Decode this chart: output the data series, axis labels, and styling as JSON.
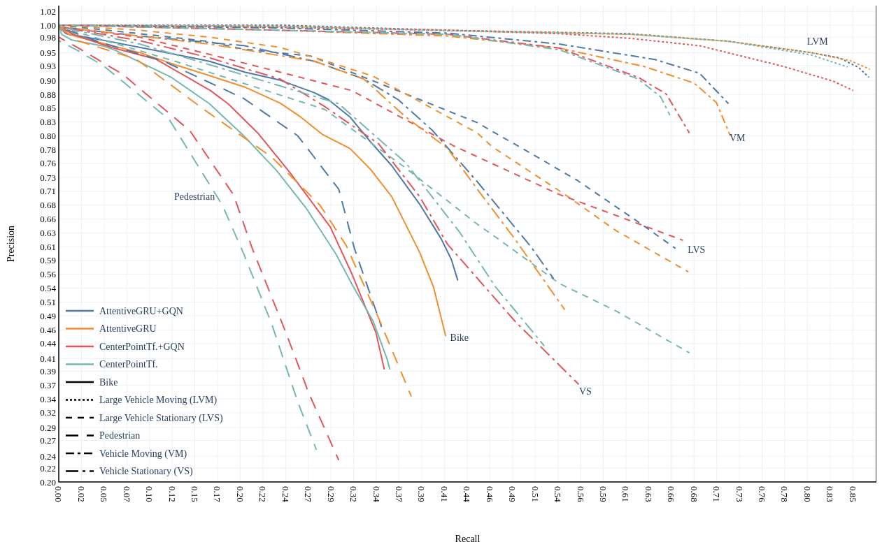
{
  "chart_data": {
    "type": "line",
    "xlabel": "Recall",
    "ylabel": "Precision",
    "xlim": [
      0,
      0.879
    ],
    "ylim": [
      0.2,
      1.03
    ],
    "xticks": [
      {
        "value": 0,
        "label": "0.00"
      },
      {
        "value": 0.0244,
        "label": "0.02"
      },
      {
        "value": 0.0488,
        "label": "0.05"
      },
      {
        "value": 0.0732,
        "label": "0.07"
      },
      {
        "value": 0.0976,
        "label": "0.10"
      },
      {
        "value": 0.122,
        "label": "0.12"
      },
      {
        "value": 0.1463,
        "label": "0.15"
      },
      {
        "value": 0.1707,
        "label": "0.17"
      },
      {
        "value": 0.1951,
        "label": "0.20"
      },
      {
        "value": 0.2195,
        "label": "0.22"
      },
      {
        "value": 0.2439,
        "label": "0.24"
      },
      {
        "value": 0.2683,
        "label": "0.27"
      },
      {
        "value": 0.2927,
        "label": "0.29"
      },
      {
        "value": 0.3171,
        "label": "0.32"
      },
      {
        "value": 0.3415,
        "label": "0.34"
      },
      {
        "value": 0.3659,
        "label": "0.37"
      },
      {
        "value": 0.3902,
        "label": "0.39"
      },
      {
        "value": 0.4146,
        "label": "0.41"
      },
      {
        "value": 0.439,
        "label": "0.44"
      },
      {
        "value": 0.4634,
        "label": "0.46"
      },
      {
        "value": 0.4878,
        "label": "0.49"
      },
      {
        "value": 0.5122,
        "label": "0.51"
      },
      {
        "value": 0.5366,
        "label": "0.54"
      },
      {
        "value": 0.561,
        "label": "0.56"
      },
      {
        "value": 0.5854,
        "label": "0.59"
      },
      {
        "value": 0.6098,
        "label": "0.61"
      },
      {
        "value": 0.6341,
        "label": "0.63"
      },
      {
        "value": 0.6585,
        "label": "0.66"
      },
      {
        "value": 0.6829,
        "label": "0.68"
      },
      {
        "value": 0.7073,
        "label": "0.71"
      },
      {
        "value": 0.7317,
        "label": "0.73"
      },
      {
        "value": 0.7561,
        "label": "0.76"
      },
      {
        "value": 0.7805,
        "label": "0.78"
      },
      {
        "value": 0.8049,
        "label": "0.80"
      },
      {
        "value": 0.8293,
        "label": "0.83"
      },
      {
        "value": 0.8537,
        "label": "0.85"
      }
    ],
    "yticks": [
      {
        "value": 0.2,
        "label": "0.20"
      },
      {
        "value": 0.2241,
        "label": "0.22"
      },
      {
        "value": 0.2449,
        "label": "0.24"
      },
      {
        "value": 0.2724,
        "label": "0.27"
      },
      {
        "value": 0.2949,
        "label": "0.29"
      },
      {
        "value": 0.3206,
        "label": "0.32"
      },
      {
        "value": 0.3447,
        "label": "0.34"
      },
      {
        "value": 0.3688,
        "label": "0.37"
      },
      {
        "value": 0.3929,
        "label": "0.39"
      },
      {
        "value": 0.4149,
        "label": "0.41"
      },
      {
        "value": 0.4412,
        "label": "0.44"
      },
      {
        "value": 0.4649,
        "label": "0.46"
      },
      {
        "value": 0.4894,
        "label": "0.49"
      },
      {
        "value": 0.5135,
        "label": "0.51"
      },
      {
        "value": 0.5376,
        "label": "0.54"
      },
      {
        "value": 0.5618,
        "label": "0.56"
      },
      {
        "value": 0.5859,
        "label": "0.59"
      },
      {
        "value": 0.61,
        "label": "0.61"
      },
      {
        "value": 0.6341,
        "label": "0.63"
      },
      {
        "value": 0.6582,
        "label": "0.66"
      },
      {
        "value": 0.6824,
        "label": "0.68"
      },
      {
        "value": 0.7065,
        "label": "0.71"
      },
      {
        "value": 0.7306,
        "label": "0.73"
      },
      {
        "value": 0.7551,
        "label": "0.76"
      },
      {
        "value": 0.7788,
        "label": "0.78"
      },
      {
        "value": 0.8029,
        "label": "0.80"
      },
      {
        "value": 0.8271,
        "label": "0.83"
      },
      {
        "value": 0.8512,
        "label": "0.85"
      },
      {
        "value": 0.8753,
        "label": "0.88"
      },
      {
        "value": 0.8994,
        "label": "0.90"
      },
      {
        "value": 0.925,
        "label": "0.93"
      },
      {
        "value": 0.9476,
        "label": "0.95"
      },
      {
        "value": 0.9751,
        "label": "0.98"
      },
      {
        "value": 0.9959,
        "label": "1.00"
      },
      {
        "value": 1.02,
        "label": "1.02"
      }
    ],
    "grid": true,
    "legend": "bottom left",
    "annotations": [
      "Bike",
      "Large Vehicle Moving (LVM)",
      "Large Vehicle Stationary (LVS)",
      "Pedestrian",
      "Vehicle Moving (VM)",
      "Vehicle Stationary (VS)",
      "LVM",
      "VM",
      "LVS",
      "Bike",
      "VS",
      "Pedestrian"
    ],
    "series": [
      {
        "name": "AttentiveGRU+GQN",
        "color": "#4e79a7",
        "line_style": "solid",
        "x": [
          0,
          0.008,
          0.05,
          0.125,
          0.162,
          0.2,
          0.238,
          0.275,
          0.29,
          0.313,
          0.335,
          0.358,
          0.388,
          0.411,
          0.422,
          0.429
        ],
        "values": [
          0.993,
          0.981,
          0.969,
          0.945,
          0.933,
          0.914,
          0.9,
          0.878,
          0.866,
          0.836,
          0.793,
          0.751,
          0.684,
          0.624,
          0.588,
          0.551
        ]
      },
      {
        "name": "AttentiveGRU",
        "color": "#f28e2b",
        "line_style": "solid",
        "x": [
          0,
          0.012,
          0.05,
          0.087,
          0.125,
          0.162,
          0.2,
          0.238,
          0.26,
          0.283,
          0.313,
          0.335,
          0.358,
          0.388,
          0.403,
          0.416
        ],
        "values": [
          0.993,
          0.979,
          0.963,
          0.948,
          0.927,
          0.908,
          0.888,
          0.86,
          0.836,
          0.806,
          0.781,
          0.745,
          0.697,
          0.6,
          0.539,
          0.454
        ]
      },
      {
        "name": "CenterPointTf.+GQN",
        "color": "#e15759",
        "line_style": "solid",
        "x": [
          0,
          0.02,
          0.057,
          0.104,
          0.163,
          0.182,
          0.214,
          0.249,
          0.292,
          0.315,
          0.341,
          0.35
        ],
        "values": [
          0.993,
          0.977,
          0.957,
          0.937,
          0.882,
          0.859,
          0.808,
          0.738,
          0.644,
          0.563,
          0.46,
          0.396
        ]
      },
      {
        "name": "CenterPointTf.",
        "color": "#76b7b2",
        "line_style": "solid",
        "x": [
          0,
          0.003,
          0.014,
          0.049,
          0.061,
          0.121,
          0.162,
          0.199,
          0.234,
          0.266,
          0.298,
          0.315,
          0.338,
          0.353,
          0.356
        ],
        "values": [
          0.999,
          0.98,
          0.97,
          0.959,
          0.952,
          0.905,
          0.859,
          0.803,
          0.743,
          0.677,
          0.597,
          0.545,
          0.48,
          0.414,
          0.396
        ]
      },
      {
        "color": "#4e79a7",
        "line_style": "dotted",
        "x": [
          0,
          0.238,
          0.418,
          0.614,
          0.719,
          0.809,
          0.839,
          0.86,
          0.871
        ],
        "values": [
          0.996,
          0.996,
          0.987,
          0.981,
          0.968,
          0.948,
          0.939,
          0.922,
          0.905
        ]
      },
      {
        "color": "#f28e2b",
        "line_style": "dotted",
        "x": [
          0,
          0.238,
          0.418,
          0.614,
          0.719,
          0.809,
          0.851,
          0.872
        ],
        "values": [
          0.996,
          0.994,
          0.987,
          0.98,
          0.968,
          0.948,
          0.934,
          0.919
        ]
      },
      {
        "color": "#e15759",
        "line_style": "dotted",
        "x": [
          0,
          0.238,
          0.418,
          0.538,
          0.614,
          0.689,
          0.779,
          0.833,
          0.854
        ],
        "values": [
          0.996,
          0.992,
          0.987,
          0.981,
          0.973,
          0.96,
          0.924,
          0.898,
          0.882
        ]
      },
      {
        "color": "#76b7b2",
        "line_style": "dotted",
        "x": [
          0,
          0.238,
          0.418,
          0.614,
          0.719,
          0.809,
          0.848
        ],
        "values": [
          0.996,
          0.994,
          0.986,
          0.98,
          0.968,
          0.944,
          0.923
        ]
      },
      {
        "color": "#4e79a7",
        "line_style": "dashed",
        "x": [
          0,
          0.087,
          0.159,
          0.199,
          0.271,
          0.364,
          0.45,
          0.508,
          0.557,
          0.623,
          0.663
        ],
        "values": [
          0.996,
          0.981,
          0.968,
          0.954,
          0.942,
          0.882,
          0.826,
          0.772,
          0.726,
          0.653,
          0.607
        ]
      },
      {
        "color": "#f28e2b",
        "line_style": "dashed",
        "x": [
          0,
          0.087,
          0.162,
          0.238,
          0.28,
          0.338,
          0.45,
          0.466,
          0.544,
          0.599,
          0.677
        ],
        "values": [
          0.996,
          0.987,
          0.975,
          0.957,
          0.937,
          0.907,
          0.808,
          0.784,
          0.701,
          0.638,
          0.566
        ]
      },
      {
        "color": "#e15759",
        "line_style": "dashed",
        "x": [
          0,
          0.087,
          0.162,
          0.243,
          0.315,
          0.424,
          0.538,
          0.623,
          0.671
        ],
        "values": [
          0.993,
          0.975,
          0.945,
          0.912,
          0.882,
          0.786,
          0.701,
          0.65,
          0.621
        ]
      },
      {
        "color": "#76b7b2",
        "line_style": "dashed",
        "x": [
          0,
          0.05,
          0.125,
          0.223,
          0.286,
          0.373,
          0.45,
          0.472,
          0.538,
          0.599,
          0.678
        ],
        "values": [
          0.993,
          0.969,
          0.933,
          0.882,
          0.849,
          0.747,
          0.649,
          0.624,
          0.546,
          0.498,
          0.425
        ]
      },
      {
        "color": "#4e79a7",
        "line_style": "longdash",
        "x": [
          0,
          0.041,
          0.113,
          0.199,
          0.257,
          0.301,
          0.318,
          0.347
        ],
        "values": [
          0.993,
          0.968,
          0.933,
          0.868,
          0.803,
          0.71,
          0.606,
          0.47
        ]
      },
      {
        "color": "#f28e2b",
        "line_style": "longdash",
        "x": [
          0,
          0.02,
          0.083,
          0.156,
          0.229,
          0.281,
          0.309,
          0.344,
          0.379
        ],
        "values": [
          0.993,
          0.969,
          0.937,
          0.849,
          0.766,
          0.682,
          0.612,
          0.485,
          0.349
        ]
      },
      {
        "color": "#e15759",
        "line_style": "longdash",
        "x": [
          0,
          0.02,
          0.069,
          0.141,
          0.188,
          0.208,
          0.243,
          0.269,
          0.301
        ],
        "values": [
          0.975,
          0.957,
          0.91,
          0.812,
          0.7,
          0.607,
          0.465,
          0.354,
          0.238
        ]
      },
      {
        "color": "#76b7b2",
        "line_style": "longdash",
        "x": [
          0,
          0.02,
          0.049,
          0.119,
          0.176,
          0.199,
          0.229,
          0.257,
          0.277
        ],
        "values": [
          0.969,
          0.952,
          0.924,
          0.831,
          0.682,
          0.597,
          0.475,
          0.339,
          0.256
        ]
      },
      {
        "color": "#4e79a7",
        "line_style": "dashdot",
        "x": [
          0,
          0.238,
          0.418,
          0.538,
          0.641,
          0.689,
          0.72
        ],
        "values": [
          0.996,
          0.991,
          0.982,
          0.963,
          0.936,
          0.912,
          0.859
        ]
      },
      {
        "color": "#f28e2b",
        "line_style": "dashdot",
        "x": [
          0,
          0.238,
          0.418,
          0.538,
          0.629,
          0.683,
          0.707,
          0.722
        ],
        "values": [
          0.996,
          0.987,
          0.977,
          0.956,
          0.924,
          0.895,
          0.861,
          0.803
        ]
      },
      {
        "color": "#e15759",
        "line_style": "dashdot",
        "x": [
          0,
          0.238,
          0.418,
          0.538,
          0.623,
          0.653,
          0.678
        ],
        "values": [
          0.996,
          0.987,
          0.98,
          0.956,
          0.905,
          0.876,
          0.808
        ]
      },
      {
        "color": "#76b7b2",
        "line_style": "dashdot",
        "x": [
          0,
          0.238,
          0.418,
          0.538,
          0.623,
          0.647,
          0.657
        ],
        "values": [
          0.996,
          0.987,
          0.98,
          0.953,
          0.902,
          0.871,
          0.839
        ]
      },
      {
        "color": "#4e79a7",
        "line_style": "longdashdot",
        "x": [
          0,
          0.087,
          0.2,
          0.275,
          0.328,
          0.365,
          0.402,
          0.45,
          0.508,
          0.532
        ],
        "values": [
          0.993,
          0.977,
          0.96,
          0.933,
          0.902,
          0.866,
          0.812,
          0.723,
          0.609,
          0.554
        ]
      },
      {
        "color": "#f28e2b",
        "line_style": "longdashdot",
        "x": [
          0,
          0.162,
          0.275,
          0.328,
          0.373,
          0.418,
          0.45,
          0.49,
          0.544
        ],
        "values": [
          0.993,
          0.963,
          0.933,
          0.902,
          0.836,
          0.781,
          0.71,
          0.624,
          0.5
        ]
      },
      {
        "color": "#e15759",
        "line_style": "longdashdot",
        "x": [
          0,
          0.087,
          0.162,
          0.238,
          0.286,
          0.344,
          0.388,
          0.418,
          0.491,
          0.559
        ],
        "values": [
          0.993,
          0.969,
          0.939,
          0.902,
          0.854,
          0.789,
          0.697,
          0.614,
          0.479,
          0.37
        ]
      },
      {
        "color": "#76b7b2",
        "line_style": "longdashdot",
        "x": [
          0,
          0.087,
          0.162,
          0.238,
          0.301,
          0.373,
          0.431,
          0.469,
          0.522
        ],
        "values": [
          0.993,
          0.963,
          0.927,
          0.89,
          0.859,
          0.756,
          0.635,
          0.541,
          0.437
        ]
      }
    ]
  }
}
